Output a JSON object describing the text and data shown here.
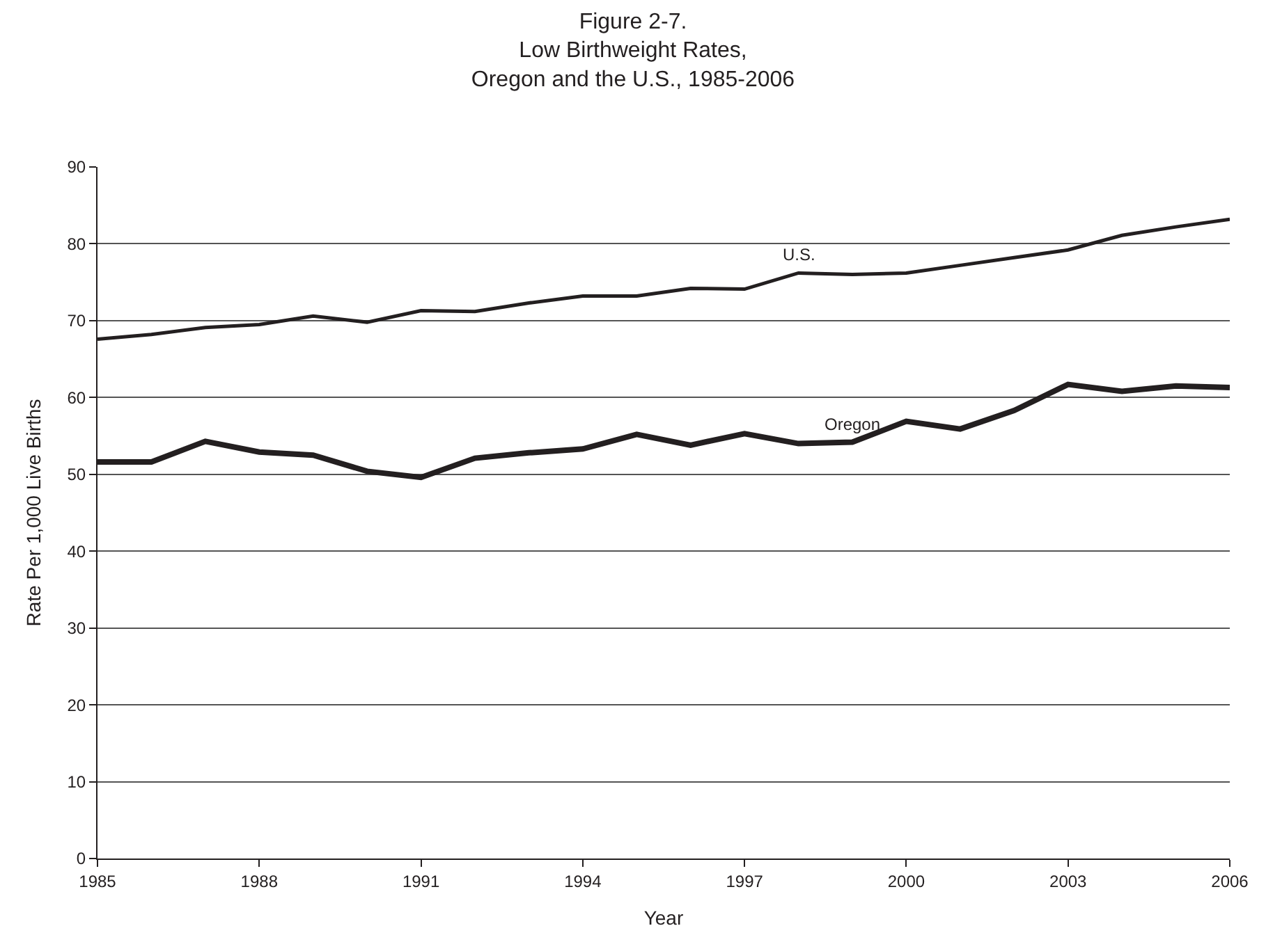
{
  "chart_data": {
    "type": "line",
    "title": "Figure 2-7.\nLow Birthweight Rates,\nOregon and the U.S., 1985-2006",
    "xlabel": "Year",
    "ylabel": "Rate Per 1,000 Live Births",
    "x": [
      1985,
      1986,
      1987,
      1988,
      1989,
      1990,
      1991,
      1992,
      1993,
      1994,
      1995,
      1996,
      1997,
      1998,
      1999,
      2000,
      2001,
      2002,
      2003,
      2004,
      2005,
      2006
    ],
    "series": [
      {
        "name": "U.S.",
        "color": "#231f20",
        "values": [
          67.6,
          68.2,
          69.1,
          69.5,
          70.6,
          69.8,
          71.3,
          71.2,
          72.3,
          73.2,
          73.2,
          74.2,
          74.1,
          76.2,
          76.0,
          76.2,
          77.2,
          78.2,
          79.2,
          81.1,
          82.2,
          83.2
        ]
      },
      {
        "name": "Oregon",
        "color": "#231f20",
        "values": [
          51.6,
          51.6,
          54.3,
          52.9,
          52.5,
          50.4,
          49.6,
          52.1,
          52.8,
          53.3,
          55.2,
          53.8,
          55.3,
          54.0,
          54.2,
          56.9,
          55.9,
          58.3,
          61.7,
          60.8,
          61.5,
          61.3
        ]
      }
    ],
    "xlim": [
      1985,
      2006
    ],
    "xticks": [
      1985,
      1988,
      1991,
      1994,
      1997,
      2000,
      2003,
      2006
    ],
    "ylim": [
      0,
      90
    ],
    "yticks": [
      0,
      10,
      20,
      30,
      40,
      50,
      60,
      70,
      80,
      90
    ],
    "grid": "y",
    "legend": false,
    "marker": "none",
    "line_style": "solid"
  }
}
